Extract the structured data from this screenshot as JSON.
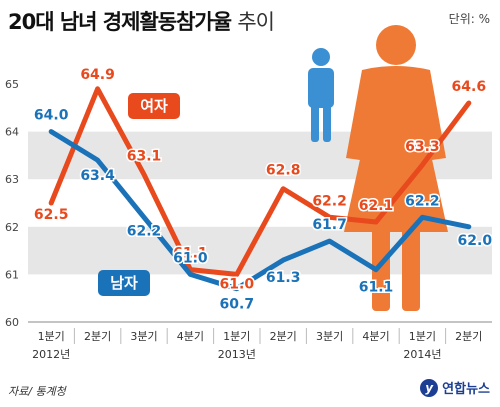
{
  "header": {
    "title": "20대 남녀 경제활동참가율",
    "subtitle": "추이",
    "unit": "단위: %"
  },
  "footer": {
    "source": "자료/ 통계청",
    "logo_mark": "y",
    "logo_text": "연합뉴스"
  },
  "colors": {
    "female": "#e8491d",
    "male": "#1a72b8",
    "female_figure": "#ee7a35",
    "male_figure": "#3b8fd3",
    "band": "#e6e6e6"
  },
  "chart_data": {
    "type": "line",
    "x_labels": [
      "1분기",
      "2분기",
      "3분기",
      "4분기",
      "1분기",
      "2분기",
      "3분기",
      "4분기",
      "1분기",
      "2분기"
    ],
    "year_labels": [
      {
        "index": 0,
        "label": "2012년"
      },
      {
        "index": 4,
        "label": "2013년"
      },
      {
        "index": 8,
        "label": "2014년"
      }
    ],
    "y_ticks": [
      60,
      61,
      62,
      63,
      64,
      65
    ],
    "ylim": [
      60,
      65
    ],
    "series": [
      {
        "name": "여자",
        "color": "#e8491d",
        "values": [
          62.5,
          64.9,
          63.1,
          61.1,
          61.0,
          62.8,
          62.2,
          62.1,
          63.3,
          64.6
        ],
        "value_labels": [
          "62.5",
          "64.9",
          "63.1",
          "61.1",
          "61.0",
          "62.8",
          "62.2",
          "62.1",
          "63.3",
          "64.6"
        ]
      },
      {
        "name": "남자",
        "color": "#1a72b8",
        "values": [
          64.0,
          63.4,
          62.2,
          61.0,
          60.7,
          61.3,
          61.7,
          61.1,
          62.2,
          62.0
        ],
        "value_labels": [
          "64.0",
          "63.4",
          "62.2",
          "61.0",
          "60.7",
          "61.3",
          "61.7",
          "61.1",
          "62.2",
          "62.0"
        ]
      }
    ],
    "grid": "alternating bands",
    "legend": "inline labels"
  }
}
